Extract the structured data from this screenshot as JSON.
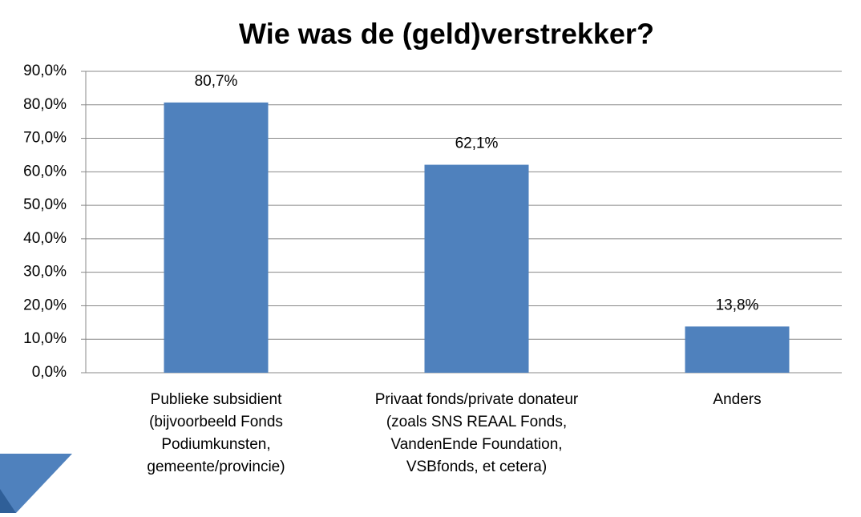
{
  "chart_data": {
    "type": "bar",
    "title": "Wie was de (geld)verstrekker?",
    "categories": [
      "Publieke subsidient (bijvoorbeeld Fonds Podiumkunsten, gemeente/provincie)",
      "Privaat fonds/private donateur (zoals SNS REAAL Fonds, VandenEnde Foundation, VSBfonds, et cetera)",
      "Anders"
    ],
    "values": [
      80.7,
      62.1,
      13.8
    ],
    "value_labels": [
      "80,7%",
      "62,1%",
      "13,8%"
    ],
    "color": "#4f81bd",
    "ylim": [
      0,
      90
    ],
    "yticks": [
      {
        "value": 0,
        "label": "0,0%"
      },
      {
        "value": 10,
        "label": "10,0%"
      },
      {
        "value": 20,
        "label": "20,0%"
      },
      {
        "value": 30,
        "label": "30,0%"
      },
      {
        "value": 40,
        "label": "40,0%"
      },
      {
        "value": 50,
        "label": "50,0%"
      },
      {
        "value": 60,
        "label": "60,0%"
      },
      {
        "value": 70,
        "label": "70,0%"
      },
      {
        "value": 80,
        "label": "80,0%"
      },
      {
        "value": 90,
        "label": "90,0%"
      }
    ],
    "grid": true
  }
}
